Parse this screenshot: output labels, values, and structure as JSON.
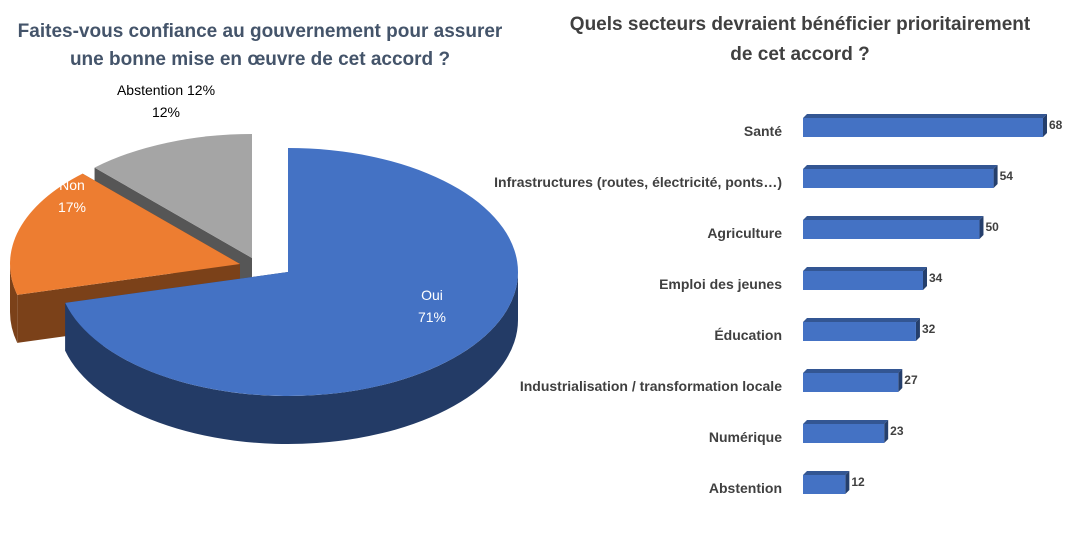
{
  "chart_data": [
    {
      "type": "pie",
      "title": "Faites-vous confiance au gouvernement pour assurer une bonne mise en œuvre de cet accord ?",
      "slices": [
        {
          "label": "Oui",
          "value": 71,
          "value_text": "71%",
          "color": "#4472c4"
        },
        {
          "label": "Non",
          "value": 17,
          "value_text": "17%",
          "color": "#ed7d31"
        },
        {
          "label": "Abstention 12%",
          "value": 12,
          "value_text": "12%",
          "color": "#a5a5a5"
        }
      ]
    },
    {
      "type": "bar",
      "orientation": "horizontal",
      "title": "Quels secteurs devraient bénéficier prioritairement de cet accord ?",
      "categories": [
        "Santé",
        "Infrastructures (routes, électricité, ponts…)",
        "Agriculture",
        "Emploi des jeunes",
        "Éducation",
        "Industrialisation / transformation locale",
        "Numérique",
        "Abstention"
      ],
      "values": [
        68,
        54,
        50,
        34,
        32,
        27,
        23,
        12
      ],
      "color": "#4472c4",
      "xlim": [
        0,
        68
      ]
    }
  ]
}
